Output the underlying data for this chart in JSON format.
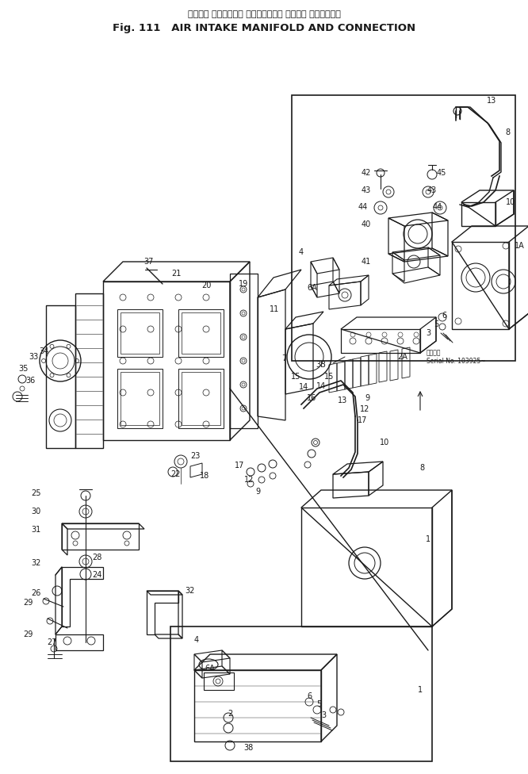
{
  "title_japanese": "エアー　 インテーク　 マニホールド　 および　 コネクション",
  "title_english": "Fig. 111   AIR INTAKE MANIFOLD AND CONNECTION",
  "serial_ja": "適用号番",
  "serial_en": "Serial No. 103925~",
  "bg": "#ffffff",
  "lc": "#1a1a1a",
  "fig_width": 6.66,
  "fig_height": 9.76,
  "dpi": 100
}
